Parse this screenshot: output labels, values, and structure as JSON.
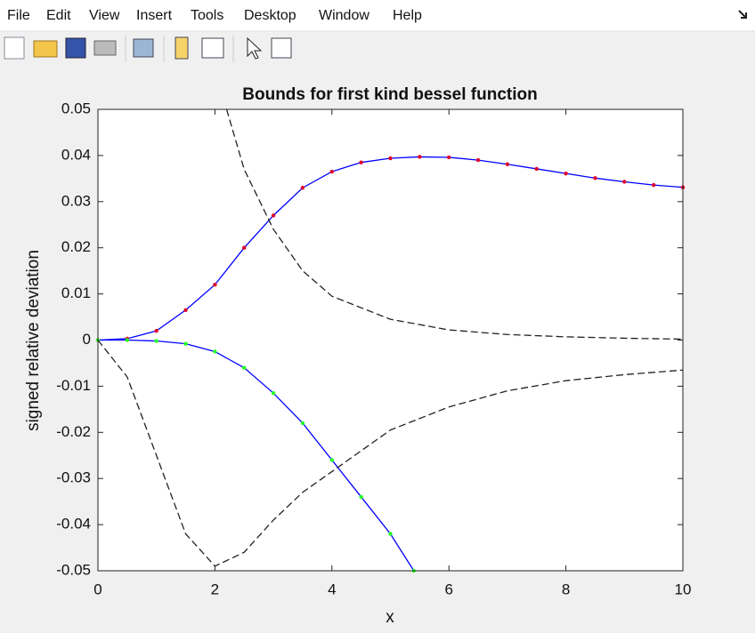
{
  "menu": [
    "File",
    "Edit",
    "View",
    "Insert",
    "Tools",
    "Desktop",
    "Window",
    "Help"
  ],
  "chart_data": {
    "type": "line",
    "title": "Bounds for first kind bessel function",
    "xlabel": "x",
    "ylabel": "signed relative deviation",
    "xlim": [
      0,
      10
    ],
    "ylim": [
      -0.05,
      0.05
    ],
    "xticks": [
      0,
      2,
      4,
      6,
      8,
      10
    ],
    "yticks": [
      -0.05,
      -0.04,
      -0.03,
      -0.02,
      -0.01,
      0,
      0.01,
      0.02,
      0.03,
      0.04,
      0.05
    ],
    "series": [
      {
        "color": "#e0002a",
        "line_color": "#0000ff",
        "markers": true,
        "dash": false,
        "x": [
          0,
          0.5,
          1,
          1.5,
          2,
          2.5,
          3,
          3.5,
          4,
          4.5,
          5,
          5.5,
          6,
          6.5,
          7,
          7.5,
          8,
          8.5,
          9,
          9.5,
          10
        ],
        "values": [
          0,
          0.0003,
          0.002,
          0.0065,
          0.012,
          0.02,
          0.027,
          0.033,
          0.0365,
          0.0385,
          0.0394,
          0.0397,
          0.0396,
          0.039,
          0.0381,
          0.0371,
          0.0361,
          0.0351,
          0.0343,
          0.0336,
          0.0331
        ]
      },
      {
        "color": "#22ff22",
        "line_color": "#0000ff",
        "markers": true,
        "dash": false,
        "x": [
          0,
          0.5,
          1,
          1.5,
          2,
          2.5,
          3,
          3.5,
          4,
          4.5,
          5,
          5.4
        ],
        "values": [
          0,
          0,
          -0.0002,
          -0.0008,
          -0.0025,
          -0.006,
          -0.0115,
          -0.018,
          -0.026,
          -0.034,
          -0.042,
          -0.05
        ]
      },
      {
        "color": "#222222",
        "markers": false,
        "dash": true,
        "x": [
          2.2,
          2.5,
          3,
          3.5,
          4,
          5,
          6,
          7,
          8,
          9,
          10
        ],
        "values": [
          0.05,
          0.037,
          0.024,
          0.015,
          0.0095,
          0.0045,
          0.0022,
          0.0012,
          0.0007,
          0.0004,
          0.0002
        ]
      },
      {
        "color": "#222222",
        "markers": false,
        "dash": true,
        "x": [
          0,
          0.5,
          1,
          1.5,
          2,
          2.5,
          3,
          3.5,
          4,
          4.5,
          5,
          6,
          7,
          8,
          9,
          10
        ],
        "values": [
          0,
          -0.008,
          -0.025,
          -0.042,
          -0.049,
          -0.046,
          -0.039,
          -0.033,
          -0.0285,
          -0.024,
          -0.0195,
          -0.0145,
          -0.011,
          -0.0088,
          -0.0075,
          -0.0065
        ]
      }
    ]
  }
}
